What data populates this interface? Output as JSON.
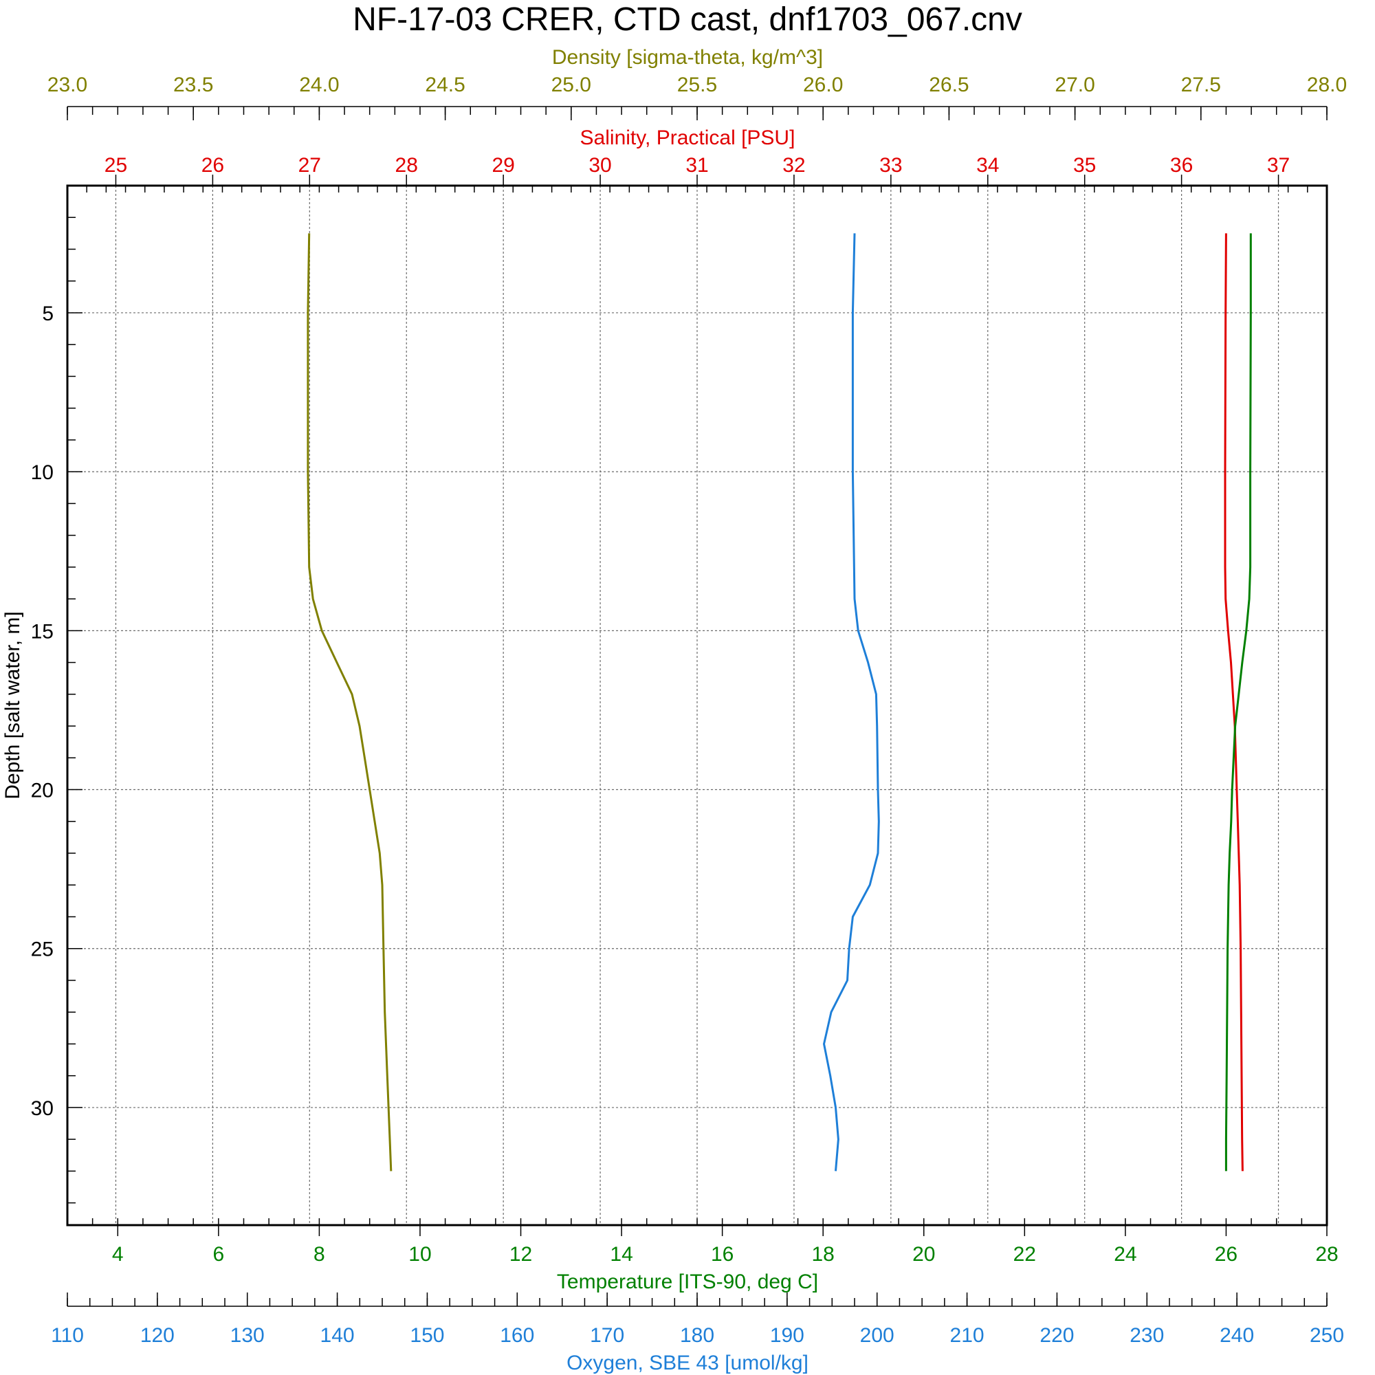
{
  "chart_data": {
    "type": "line",
    "title": "NF-17-03 CRER, CTD cast, dnf1703_067.cnv",
    "ylabel": "Depth [salt water, m]",
    "y_reversed": true,
    "ylim": [
      1,
      33.7
    ],
    "yticks": [
      "5",
      "10",
      "15",
      "20",
      "25",
      "30"
    ],
    "grid": true,
    "colors": {
      "density": "#808000",
      "salinity": "#e00000",
      "temperature": "#008000",
      "oxygen": "#1e7fd8"
    },
    "axes": {
      "density": {
        "label": "Density [sigma-theta, kg/m^3]",
        "range": [
          23.0,
          28.0
        ],
        "ticks": [
          "23.0",
          "23.5",
          "24.0",
          "24.5",
          "25.0",
          "25.5",
          "26.0",
          "26.5",
          "27.0",
          "27.5",
          "28.0"
        ]
      },
      "salinity": {
        "label": "Salinity, Practical [PSU]",
        "range": [
          24.5,
          37.5
        ],
        "ticks": [
          "25",
          "26",
          "27",
          "28",
          "29",
          "30",
          "31",
          "32",
          "33",
          "34",
          "35",
          "36",
          "37"
        ]
      },
      "temperature": {
        "label": "Temperature [ITS-90, deg C]",
        "range": [
          3,
          28
        ],
        "ticks": [
          "4",
          "6",
          "8",
          "10",
          "12",
          "14",
          "16",
          "18",
          "20",
          "22",
          "24",
          "26",
          "28"
        ]
      },
      "oxygen": {
        "label": "Oxygen, SBE 43 [umol/kg]",
        "range": [
          110,
          250
        ],
        "ticks": [
          "110",
          "120",
          "130",
          "140",
          "150",
          "160",
          "170",
          "180",
          "190",
          "200",
          "210",
          "220",
          "230",
          "240",
          "250"
        ]
      }
    },
    "series": [
      {
        "key": "density",
        "axis": "density",
        "points": [
          [
            2.5,
            23.96
          ],
          [
            5,
            23.955
          ],
          [
            10,
            23.955
          ],
          [
            13,
            23.96
          ],
          [
            14,
            23.975
          ],
          [
            15,
            24.01
          ],
          [
            16,
            24.07
          ],
          [
            17,
            24.13
          ],
          [
            18,
            24.16
          ],
          [
            19,
            24.18
          ],
          [
            20,
            24.2
          ],
          [
            21,
            24.22
          ],
          [
            22,
            24.24
          ],
          [
            23,
            24.25
          ],
          [
            25,
            24.255
          ],
          [
            27,
            24.26
          ],
          [
            29,
            24.27
          ],
          [
            31,
            24.28
          ],
          [
            32,
            24.285
          ]
        ]
      },
      {
        "key": "salinity",
        "axis": "salinity",
        "points": [
          [
            2.5,
            36.46
          ],
          [
            5,
            36.455
          ],
          [
            10,
            36.45
          ],
          [
            13,
            36.45
          ],
          [
            14,
            36.455
          ],
          [
            15,
            36.48
          ],
          [
            16,
            36.51
          ],
          [
            17,
            36.53
          ],
          [
            18,
            36.55
          ],
          [
            19,
            36.56
          ],
          [
            20,
            36.57
          ],
          [
            21,
            36.58
          ],
          [
            22,
            36.59
          ],
          [
            23,
            36.6
          ],
          [
            25,
            36.61
          ],
          [
            27,
            36.615
          ],
          [
            29,
            36.62
          ],
          [
            31,
            36.625
          ],
          [
            32,
            36.63
          ]
        ]
      },
      {
        "key": "temperature",
        "axis": "temperature",
        "points": [
          [
            2.5,
            26.49
          ],
          [
            5,
            26.49
          ],
          [
            10,
            26.48
          ],
          [
            13,
            26.48
          ],
          [
            14,
            26.46
          ],
          [
            15,
            26.4
          ],
          [
            16,
            26.32
          ],
          [
            17,
            26.25
          ],
          [
            18,
            26.18
          ],
          [
            19,
            26.15
          ],
          [
            20,
            26.12
          ],
          [
            21,
            26.1
          ],
          [
            22,
            26.07
          ],
          [
            23,
            26.05
          ],
          [
            25,
            26.03
          ],
          [
            27,
            26.02
          ],
          [
            29,
            26.01
          ],
          [
            31,
            26.0
          ],
          [
            32,
            26.0
          ]
        ]
      },
      {
        "key": "oxygen",
        "axis": "oxygen",
        "points": [
          [
            2.5,
            197.5
          ],
          [
            5,
            197.3
          ],
          [
            10,
            197.3
          ],
          [
            14,
            197.5
          ],
          [
            15,
            197.9
          ],
          [
            16,
            199.0
          ],
          [
            17,
            199.9
          ],
          [
            18,
            200.0
          ],
          [
            20,
            200.1
          ],
          [
            21,
            200.2
          ],
          [
            22,
            200.1
          ],
          [
            23,
            199.2
          ],
          [
            24,
            197.3
          ],
          [
            25,
            196.9
          ],
          [
            26,
            196.7
          ],
          [
            27,
            194.9
          ],
          [
            28,
            194.1
          ],
          [
            29,
            194.8
          ],
          [
            30,
            195.4
          ],
          [
            31,
            195.7
          ],
          [
            32,
            195.4
          ]
        ]
      }
    ]
  }
}
